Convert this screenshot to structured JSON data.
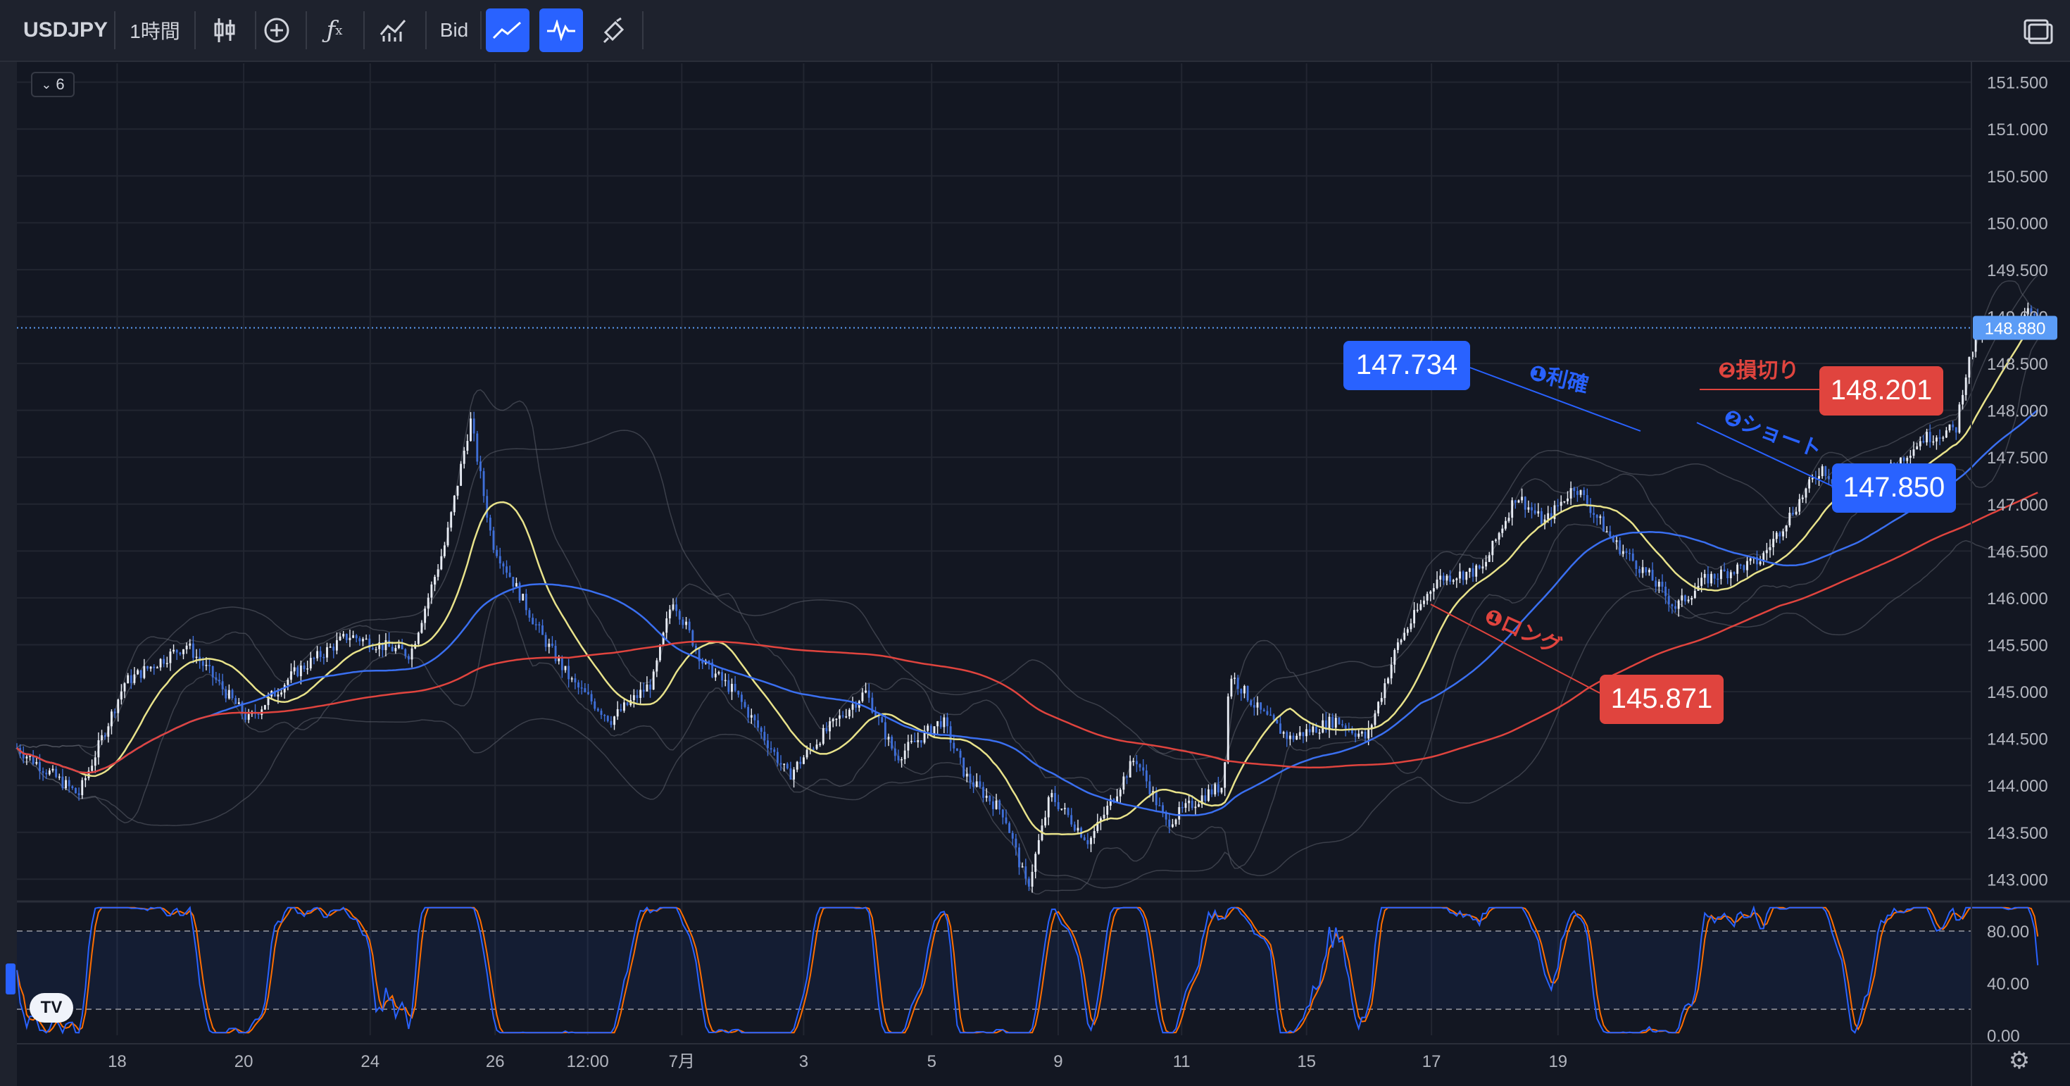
{
  "toolbar": {
    "symbol": "USDJPY",
    "interval": "1時間",
    "price_type": "Bid",
    "icons": [
      "candles-icon",
      "plus-circle-icon",
      "function-icon",
      "indicators-icon",
      "line-icon",
      "oscillator-icon",
      "brush-icon",
      "screenshot-icon"
    ]
  },
  "interval_chip": "6",
  "logo_text": "TV",
  "chart_data": {
    "type": "candlestick",
    "symbol": "USDJPY",
    "timeframe": "1時間",
    "y_range": [
      142.8,
      151.7
    ],
    "price_ticks": [
      "151.500",
      "151.000",
      "150.500",
      "150.000",
      "149.500",
      "149.000",
      "148.500",
      "148.000",
      "147.500",
      "147.000",
      "146.500",
      "146.000",
      "145.500",
      "145.000",
      "144.500",
      "144.000",
      "143.500",
      "143.000"
    ],
    "x_tick_labels": [
      {
        "label": "18",
        "x": 0.065
      },
      {
        "label": "20",
        "x": 0.147
      },
      {
        "label": "24",
        "x": 0.229
      },
      {
        "label": "26",
        "x": 0.31
      },
      {
        "label": "12:00",
        "x": 0.37
      },
      {
        "label": "7月",
        "x": 0.431
      },
      {
        "label": "3",
        "x": 0.51
      },
      {
        "label": "5",
        "x": 0.593
      },
      {
        "label": "9",
        "x": 0.675
      },
      {
        "label": "11",
        "x": 0.755
      },
      {
        "label": "15",
        "x": 0.836
      },
      {
        "label": "17",
        "x": 0.917
      },
      {
        "label": "19",
        "x": 0.999
      }
    ],
    "price_path": [
      [
        0,
        144.4
      ],
      [
        0.04,
        143.9
      ],
      [
        0.07,
        145.1
      ],
      [
        0.11,
        145.5
      ],
      [
        0.15,
        144.7
      ],
      [
        0.18,
        145.2
      ],
      [
        0.215,
        145.6
      ],
      [
        0.255,
        145.4
      ],
      [
        0.278,
        146.6
      ],
      [
        0.294,
        147.9
      ],
      [
        0.308,
        146.6
      ],
      [
        0.34,
        145.6
      ],
      [
        0.36,
        145.1
      ],
      [
        0.385,
        144.7
      ],
      [
        0.412,
        145.1
      ],
      [
        0.425,
        146.0
      ],
      [
        0.445,
        145.3
      ],
      [
        0.465,
        145.0
      ],
      [
        0.485,
        144.5
      ],
      [
        0.5,
        144.1
      ],
      [
        0.52,
        144.5
      ],
      [
        0.55,
        145.0
      ],
      [
        0.57,
        144.3
      ],
      [
        0.6,
        144.7
      ],
      [
        0.615,
        144.1
      ],
      [
        0.64,
        143.7
      ],
      [
        0.655,
        142.9
      ],
      [
        0.67,
        143.9
      ],
      [
        0.695,
        143.4
      ],
      [
        0.725,
        144.3
      ],
      [
        0.745,
        143.6
      ],
      [
        0.77,
        143.9
      ],
      [
        0.782,
        144.0
      ],
      [
        0.786,
        145.2
      ],
      [
        0.805,
        144.8
      ],
      [
        0.825,
        144.5
      ],
      [
        0.855,
        144.7
      ],
      [
        0.875,
        144.5
      ],
      [
        0.895,
        145.5
      ],
      [
        0.92,
        146.2
      ],
      [
        0.95,
        146.3
      ],
      [
        0.972,
        147.1
      ],
      [
        0.99,
        146.8
      ],
      [
        1.01,
        147.2
      ],
      [
        1.035,
        146.6
      ],
      [
        1.06,
        146.2
      ],
      [
        1.075,
        145.9
      ],
      [
        1.095,
        146.2
      ],
      [
        1.13,
        146.4
      ],
      [
        1.15,
        146.9
      ],
      [
        1.17,
        147.4
      ],
      [
        1.19,
        147.0
      ],
      [
        1.21,
        147.3
      ],
      [
        1.235,
        147.7
      ],
      [
        1.257,
        147.8
      ],
      [
        1.262,
        148.3
      ],
      [
        1.27,
        148.8
      ],
      [
        1.285,
        148.85
      ],
      [
        1.305,
        149.05
      ],
      [
        1.31,
        148.88
      ]
    ],
    "indicators": {
      "sma_fast": {
        "name": "",
        "color": "#e8e28a"
      },
      "sma_mid": {
        "name": "",
        "color": "#3a6ff0"
      },
      "sma_slow": {
        "name": "",
        "color": "#e0443e"
      },
      "bollinger": {
        "color": "#5d606b"
      }
    },
    "current_price": "148.880",
    "annotations": [
      {
        "label": "147.734",
        "price": 147.734,
        "color": "#2962ff",
        "note": "❶利確"
      },
      {
        "label": "148.201",
        "price": 148.201,
        "color": "#e0443e",
        "note": "❷損切り"
      },
      {
        "label": "147.850",
        "price": 147.85,
        "color": "#2962ff",
        "note": "❷ショート"
      },
      {
        "label": "145.871",
        "price": 145.871,
        "color": "#e0443e",
        "note": "❶ロング"
      }
    ],
    "oscillator": {
      "levels": [
        "80.00",
        "40.00",
        "0.00"
      ],
      "upper_band": 80,
      "lower_band": 20,
      "k_color": "#2962ff",
      "d_color": "#ff6d00"
    }
  }
}
